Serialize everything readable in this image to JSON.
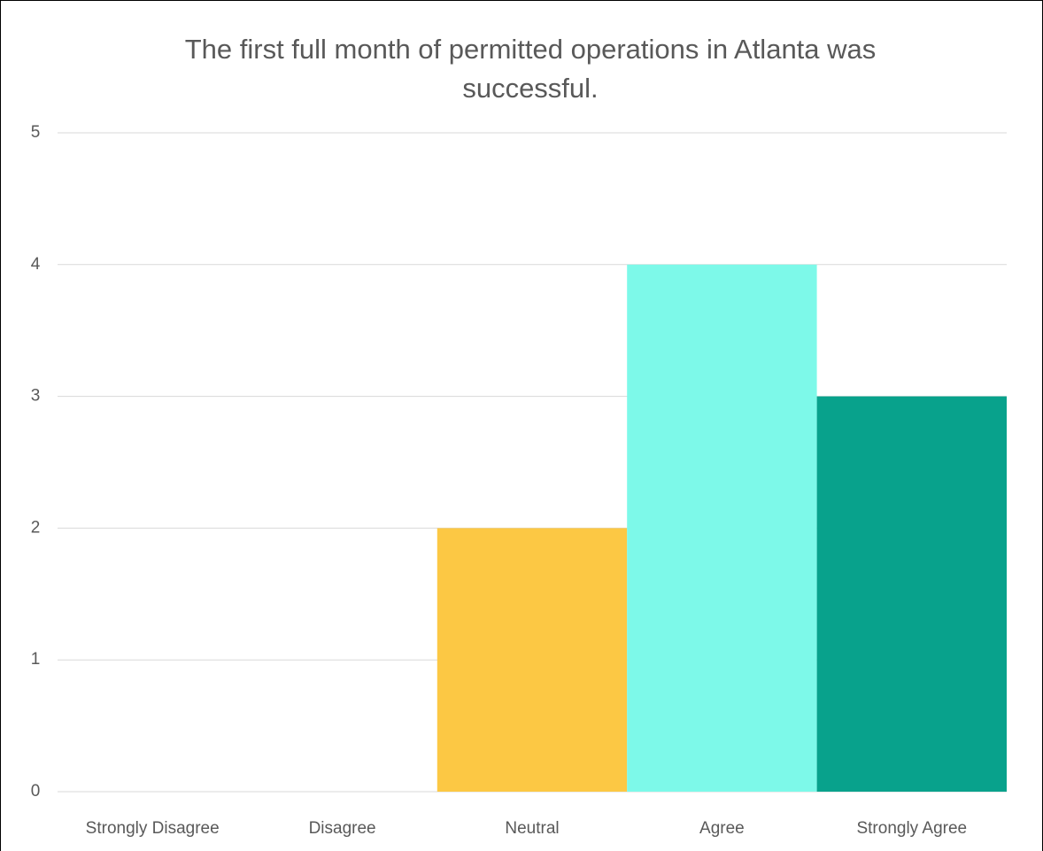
{
  "chart_data": {
    "type": "bar",
    "title": "The first full month of permitted operations in Atlanta was successful.",
    "categories": [
      "Strongly Disagree",
      "Disagree",
      "Neutral",
      "Agree",
      "Strongly Agree"
    ],
    "values": [
      0,
      0,
      2,
      4,
      3
    ],
    "colors": [
      null,
      null,
      "#fcc844",
      "#7df9e9",
      "#08a28c"
    ],
    "ylim": [
      0,
      5
    ],
    "yticks": [
      0,
      1,
      2,
      3,
      4,
      5
    ],
    "grid": true
  }
}
